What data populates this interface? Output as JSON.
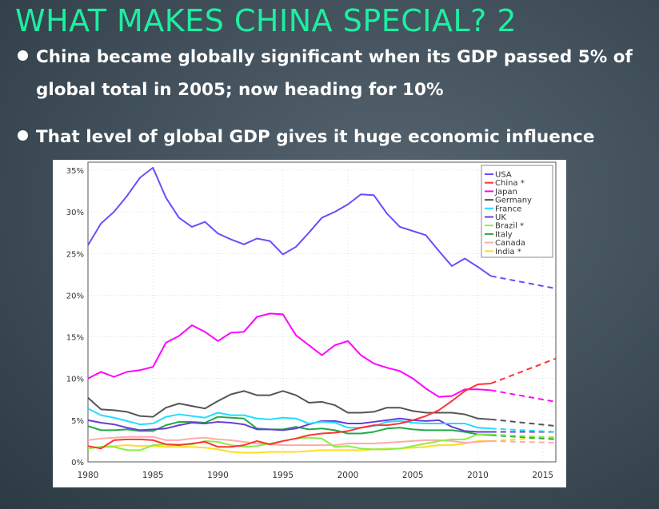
{
  "slide": {
    "title": "WHAT MAKES CHINA SPECIAL? 2",
    "bullets": [
      {
        "line1": "China became globally significant when its GDP passed 5% of",
        "line2": "global total in 2005; now heading for 10%"
      },
      {
        "line1": "That level of global GDP gives it huge economic influence"
      }
    ]
  },
  "chart_data": {
    "type": "line",
    "title": "",
    "xlabel": "",
    "ylabel": "",
    "xlim": [
      1980,
      2016
    ],
    "ylim": [
      0,
      35
    ],
    "x_ticks": [
      "1980",
      "1985",
      "1990",
      "1995",
      "2000",
      "2005",
      "2010",
      "2015"
    ],
    "y_ticks": [
      "0%",
      "5%",
      "10%",
      "15%",
      "20%",
      "25%",
      "30%",
      "35%"
    ],
    "grid": true,
    "legend_position": "top-right",
    "x_start": 1980,
    "series": [
      {
        "name": "USA",
        "color": "#6a4cff",
        "values": [
          26,
          28.6,
          30,
          31.9,
          34.1,
          35.3,
          31.7,
          29.3,
          28.2,
          28.8,
          27.4,
          26.7,
          26.1,
          26.8,
          26.5,
          24.9,
          25.8,
          27.5,
          29.3,
          30,
          30.9,
          32.1,
          32,
          29.8,
          28.2,
          27.7,
          27.2,
          25.3,
          23.5,
          24.4,
          23.4,
          22.3
        ],
        "projected_2016": 20.8
      },
      {
        "name": "China *",
        "color": "#ff3333",
        "values": [
          1.9,
          1.6,
          2.6,
          2.7,
          2.7,
          2.6,
          2.1,
          2.0,
          2.2,
          2.4,
          1.8,
          1.8,
          2.0,
          2.5,
          2.1,
          2.5,
          2.8,
          3.2,
          3.4,
          3.5,
          3.7,
          4.1,
          4.4,
          4.4,
          4.6,
          5.0,
          5.5,
          6.2,
          7.3,
          8.5,
          9.3,
          9.4
        ],
        "projected_2016": 12.4
      },
      {
        "name": "Japan",
        "color": "#ff00ff",
        "values": [
          10,
          10.8,
          10.2,
          10.8,
          11,
          11.4,
          14.3,
          15.1,
          16.4,
          15.6,
          14.5,
          15.5,
          15.6,
          17.4,
          17.8,
          17.7,
          15.2,
          14,
          12.8,
          14,
          14.5,
          12.8,
          11.8,
          11.3,
          10.9,
          10,
          8.8,
          7.8,
          7.9,
          8.7,
          8.7,
          8.6
        ],
        "projected_2016": 7.2
      },
      {
        "name": "Germany",
        "color": "#555555",
        "values": [
          7.7,
          6.3,
          6.2,
          6.0,
          5.5,
          5.4,
          6.5,
          7.0,
          6.7,
          6.4,
          7.3,
          8.1,
          8.5,
          8.0,
          8.0,
          8.5,
          8.0,
          7.1,
          7.2,
          6.8,
          5.9,
          5.9,
          6.0,
          6.5,
          6.5,
          6.1,
          5.9,
          5.9,
          5.9,
          5.7,
          5.2,
          5.1
        ],
        "projected_2016": 4.3
      },
      {
        "name": "France",
        "color": "#22ddff",
        "values": [
          6.4,
          5.6,
          5.3,
          4.9,
          4.5,
          4.6,
          5.4,
          5.7,
          5.5,
          5.3,
          5.9,
          5.6,
          5.6,
          5.2,
          5.1,
          5.3,
          5.2,
          4.6,
          4.8,
          4.7,
          4.1,
          4.1,
          4.3,
          4.8,
          4.9,
          4.7,
          4.6,
          4.6,
          4.6,
          4.6,
          4.1,
          4.0
        ],
        "projected_2016": 3.6
      },
      {
        "name": "UK",
        "color": "#6a3cd8",
        "values": [
          5.0,
          4.7,
          4.5,
          4.1,
          3.8,
          3.9,
          4.0,
          4.4,
          4.7,
          4.6,
          4.8,
          4.7,
          4.5,
          3.9,
          3.9,
          3.8,
          4.0,
          4.5,
          4.9,
          4.9,
          4.6,
          4.6,
          4.8,
          5.0,
          5.2,
          5.0,
          4.9,
          5.0,
          4.2,
          3.7,
          3.6,
          3.6
        ],
        "projected_2016": 3.6
      },
      {
        "name": "Brazil *",
        "color": "#88ee44",
        "values": [
          1.6,
          1.8,
          1.8,
          1.4,
          1.4,
          2.0,
          2.1,
          2.1,
          2.1,
          2.5,
          2.4,
          2.0,
          1.8,
          1.9,
          2.2,
          2.5,
          2.8,
          2.9,
          2.8,
          1.8,
          1.9,
          1.6,
          1.5,
          1.5,
          1.6,
          1.9,
          2.2,
          2.5,
          2.7,
          2.7,
          3.3,
          3.3
        ],
        "projected_2016": 2.9
      },
      {
        "name": "Italy",
        "color": "#22aa44",
        "values": [
          4.3,
          3.8,
          3.8,
          3.9,
          3.7,
          3.7,
          4.4,
          4.8,
          4.8,
          4.7,
          5.4,
          5.3,
          5.2,
          4.0,
          3.9,
          3.9,
          4.2,
          3.9,
          4.0,
          3.8,
          3.4,
          3.4,
          3.6,
          4.0,
          4.1,
          3.9,
          3.8,
          3.8,
          3.8,
          3.6,
          3.3,
          3.2
        ],
        "projected_2016": 2.7
      },
      {
        "name": "Canada",
        "color": "#ffaaaa",
        "values": [
          2.6,
          2.8,
          2.9,
          3.0,
          3.0,
          3.0,
          2.6,
          2.6,
          2.8,
          2.9,
          2.7,
          2.6,
          2.4,
          2.2,
          2.1,
          2.0,
          2.0,
          2.0,
          2.0,
          2.0,
          2.2,
          2.2,
          2.2,
          2.3,
          2.4,
          2.5,
          2.6,
          2.6,
          2.5,
          2.3,
          2.4,
          2.5
        ],
        "projected_2016": 2.3
      },
      {
        "name": "India *",
        "color": "#ffdd22",
        "values": [
          1.7,
          1.8,
          1.9,
          2.0,
          1.9,
          1.9,
          1.8,
          1.8,
          1.8,
          1.7,
          1.5,
          1.2,
          1.1,
          1.1,
          1.2,
          1.2,
          1.2,
          1.3,
          1.4,
          1.4,
          1.4,
          1.4,
          1.5,
          1.6,
          1.6,
          1.7,
          1.8,
          2.0,
          2.0,
          2.2,
          2.5,
          2.5
        ],
        "projected_2016": 3.0
      }
    ]
  }
}
